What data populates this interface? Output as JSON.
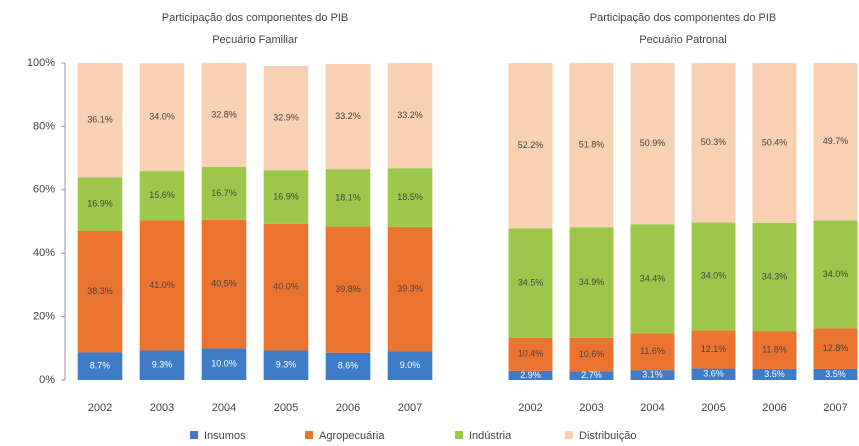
{
  "chart_data": [
    {
      "type": "stacked_bar",
      "title": "Participação dos componentes do PIB",
      "subtitle": "Pecuário Familiar",
      "categories": [
        "2002",
        "2003",
        "2004",
        "2005",
        "2006",
        "2007"
      ],
      "series": [
        {
          "name": "Insumos",
          "color": "#3f7cc8",
          "values": [
            8.7,
            9.3,
            10.0,
            9.3,
            8.6,
            9.0
          ],
          "value_labels": [
            "8.7%",
            "9.3%",
            "10.0%",
            "9.3%",
            "8.6%",
            "9.0%"
          ]
        },
        {
          "name": "Agropecuária",
          "color": "#ec7431",
          "values": [
            38.3,
            41.0,
            40.5,
            40.0,
            39.8,
            39.3
          ],
          "value_labels": [
            "38.3%",
            "41.0%",
            "40.5%",
            "40.0%",
            "39.8%",
            "39.3%"
          ]
        },
        {
          "name": "Indústria",
          "color": "#9cc74b",
          "values": [
            16.9,
            15.6,
            16.7,
            16.9,
            18.1,
            18.5
          ],
          "value_labels": [
            "16.9%",
            "15.6%",
            "16.7%",
            "16.9%",
            "18.1%",
            "18.5%"
          ]
        },
        {
          "name": "Distribuição",
          "color": "#f8d0b4",
          "values": [
            36.1,
            34.0,
            32.8,
            32.9,
            33.2,
            33.2
          ],
          "value_labels": [
            "36.1%",
            "34.0%",
            "32.8%",
            "32.9%",
            "33.2%",
            "33.2%"
          ]
        }
      ],
      "ylim": [
        0,
        100
      ],
      "yticks": [
        {
          "value": 0,
          "label": "0%"
        },
        {
          "value": 20,
          "label": "20%"
        },
        {
          "value": 40,
          "label": "40%"
        },
        {
          "value": 60,
          "label": "60%"
        },
        {
          "value": 80,
          "label": "80%"
        },
        {
          "value": 100,
          "label": "100%"
        }
      ]
    },
    {
      "type": "stacked_bar",
      "title": "Participação dos componentes do PIB",
      "subtitle": "Pecuário Patronal",
      "categories": [
        "2002",
        "2003",
        "2004",
        "2005",
        "2006",
        "2007"
      ],
      "series": [
        {
          "name": "Insumos",
          "color": "#3f7cc8",
          "values": [
            2.9,
            2.7,
            3.1,
            3.6,
            3.5,
            3.5
          ],
          "value_labels": [
            "2.9%",
            "2.7%",
            "3.1%",
            "3.6%",
            "3.5%",
            "3.5%"
          ]
        },
        {
          "name": "Agropecuária",
          "color": "#ec7431",
          "values": [
            10.4,
            10.6,
            11.6,
            12.1,
            11.8,
            12.8
          ],
          "value_labels": [
            "10.4%",
            "10.6%",
            "11.6%",
            "12.1%",
            "11.8%",
            "12.8%"
          ]
        },
        {
          "name": "Indústria",
          "color": "#9cc74b",
          "values": [
            34.5,
            34.9,
            34.4,
            34.0,
            34.3,
            34.0
          ],
          "value_labels": [
            "34.5%",
            "34.9%",
            "34.4%",
            "34.0%",
            "34.3%",
            "34.0%"
          ]
        },
        {
          "name": "Distribuição",
          "color": "#f8d0b4",
          "values": [
            52.2,
            51.8,
            50.9,
            50.3,
            50.4,
            49.7
          ],
          "value_labels": [
            "52.2%",
            "51.8%",
            "50.9%",
            "50.3%",
            "50.4%",
            "49.7%"
          ]
        }
      ],
      "ylim": [
        0,
        100
      ]
    }
  ]
}
